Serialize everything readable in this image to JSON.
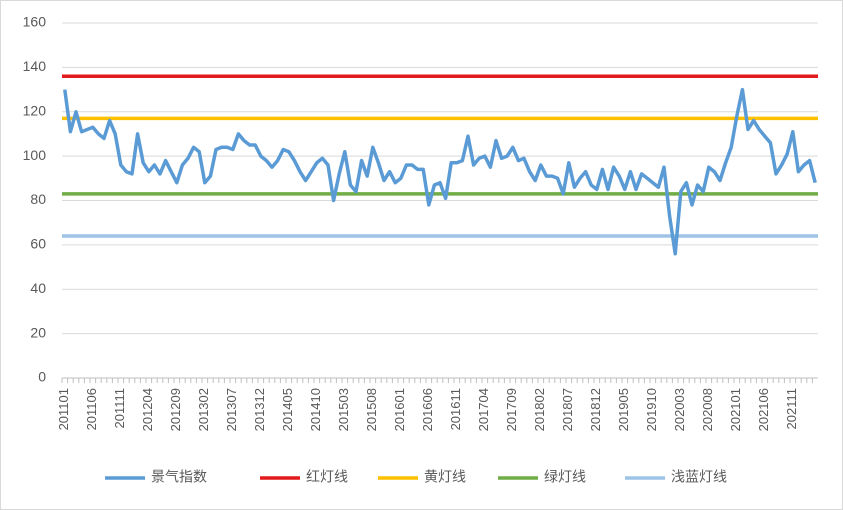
{
  "chart_data": {
    "type": "line",
    "categories": [
      "201101",
      null,
      null,
      null,
      null,
      "201106",
      null,
      null,
      null,
      null,
      "201111",
      null,
      null,
      null,
      null,
      "201204",
      null,
      null,
      null,
      null,
      "201209",
      null,
      null,
      null,
      null,
      "201302",
      null,
      null,
      null,
      null,
      "201307",
      null,
      null,
      null,
      null,
      "201312",
      null,
      null,
      null,
      null,
      "201405",
      null,
      null,
      null,
      null,
      "201410",
      null,
      null,
      null,
      null,
      "201503",
      null,
      null,
      null,
      null,
      "201508",
      null,
      null,
      null,
      null,
      "201601",
      null,
      null,
      null,
      null,
      "201606",
      null,
      null,
      null,
      null,
      "201611",
      null,
      null,
      null,
      null,
      "201704",
      null,
      null,
      null,
      null,
      "201709",
      null,
      null,
      null,
      null,
      "201802",
      null,
      null,
      null,
      null,
      "201807",
      null,
      null,
      null,
      null,
      "201812",
      null,
      null,
      null,
      null,
      "201905",
      null,
      null,
      null,
      null,
      "201910",
      null,
      null,
      null,
      null,
      "202003",
      null,
      null,
      null,
      null,
      "202008",
      null,
      null,
      null,
      null,
      "202101",
      null,
      null,
      null,
      null,
      "202106",
      null,
      null,
      null,
      null,
      "202111",
      null,
      null,
      null,
      null
    ],
    "series": [
      {
        "name": "景气指数",
        "color": "#5b9bd5",
        "values": [
          130,
          111,
          120,
          111,
          112,
          113,
          110,
          108,
          116,
          110,
          96,
          93,
          92,
          110,
          97,
          93,
          96,
          92,
          98,
          93,
          88,
          96,
          99,
          104,
          102,
          88,
          91,
          103,
          104,
          104,
          103,
          110,
          107,
          105,
          105,
          100,
          98,
          95,
          98,
          103,
          102,
          98,
          93,
          89,
          93,
          97,
          99,
          96,
          80,
          92,
          102,
          87,
          84,
          98,
          91,
          104,
          97,
          89,
          93,
          88,
          90,
          96,
          96,
          94,
          94,
          78,
          87,
          88,
          81,
          97,
          97,
          98,
          109,
          96,
          99,
          100,
          95,
          107,
          99,
          100,
          104,
          98,
          99,
          93,
          89,
          96,
          91,
          91,
          90,
          83,
          97,
          86,
          90,
          93,
          87,
          85,
          94,
          85,
          95,
          91,
          85,
          93,
          85,
          92,
          90,
          88,
          86,
          95,
          73,
          56,
          84,
          88,
          78,
          87,
          84,
          95,
          93,
          89,
          97,
          104,
          118,
          130,
          112,
          116,
          112,
          109,
          106,
          92,
          96,
          101,
          111,
          93,
          96,
          98,
          88
        ]
      }
    ],
    "reference_lines": [
      {
        "name": "红灯线",
        "color": "#e31a1c",
        "value": 136
      },
      {
        "name": "黄灯线",
        "color": "#ffc000",
        "value": 117
      },
      {
        "name": "绿灯线",
        "color": "#70ad47",
        "value": 83
      },
      {
        "name": "浅蓝灯线",
        "color": "#9dc3e6",
        "value": 64
      }
    ],
    "ylim": [
      0,
      160
    ],
    "yticks": [
      0,
      20,
      40,
      60,
      80,
      100,
      120,
      140,
      160
    ],
    "grid": true,
    "legend": "bottom"
  }
}
